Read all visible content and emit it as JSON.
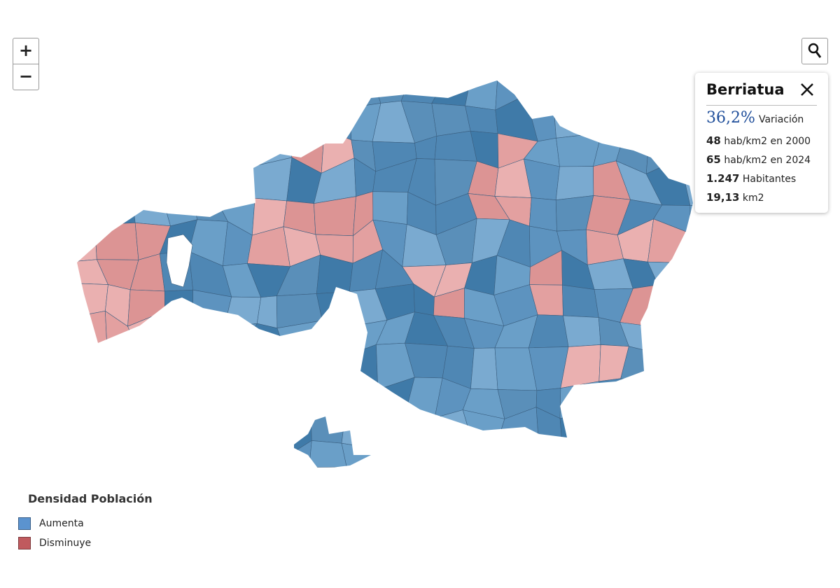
{
  "zoom": {
    "in": "+",
    "out": "−"
  },
  "tooltip": {
    "title": "Berriatua",
    "variation": {
      "value": "36,2%",
      "label": "Variación"
    },
    "rows": [
      {
        "value": "48",
        "label": "hab/km2 en 2000"
      },
      {
        "value": "65",
        "label": "hab/km2 en 2024"
      },
      {
        "value": "1.247",
        "label": "Habitantes"
      },
      {
        "value": "19,13",
        "label": "km2"
      }
    ]
  },
  "legend": {
    "title": "Densidad Población",
    "items": [
      {
        "label": "Aumenta",
        "color": "#5b93cf"
      },
      {
        "label": "Disminuye",
        "color": "#c05a5e"
      }
    ]
  }
}
